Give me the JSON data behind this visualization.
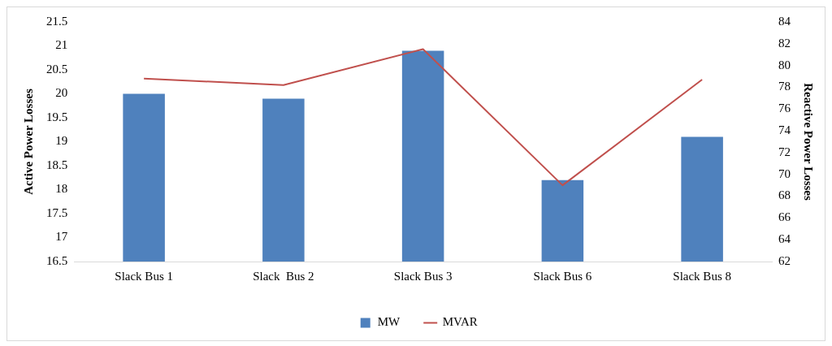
{
  "chart_data": {
    "type": "bar",
    "ylabel": "Active Power Losses",
    "y2label": "Reactive Power Losses",
    "categories": [
      "Slack Bus 1",
      "Slack  Bus 2",
      "Slack Bus 3",
      "Slack Bus 6",
      "Slack Bus 8"
    ],
    "series": [
      {
        "name": "MW",
        "color": "#4f81bd",
        "values": [
          20.0,
          19.9,
          20.9,
          18.2,
          19.1
        ]
      },
      {
        "name": "MVAR",
        "type": "line",
        "axis": "y2",
        "color": "#c0504d",
        "values": [
          78.8,
          78.2,
          81.5,
          69.0,
          78.7
        ]
      }
    ],
    "ylim": [
      16.5,
      21.5
    ],
    "yticks": [
      16.5,
      17,
      17.5,
      18,
      18.5,
      19,
      19.5,
      20,
      20.5,
      21,
      21.5
    ],
    "y2lim": [
      62,
      84
    ],
    "y2ticks": [
      62,
      64,
      66,
      68,
      70,
      72,
      74,
      76,
      78,
      80,
      82,
      84
    ],
    "grid": false,
    "legend": "bottom",
    "marker": "none"
  }
}
